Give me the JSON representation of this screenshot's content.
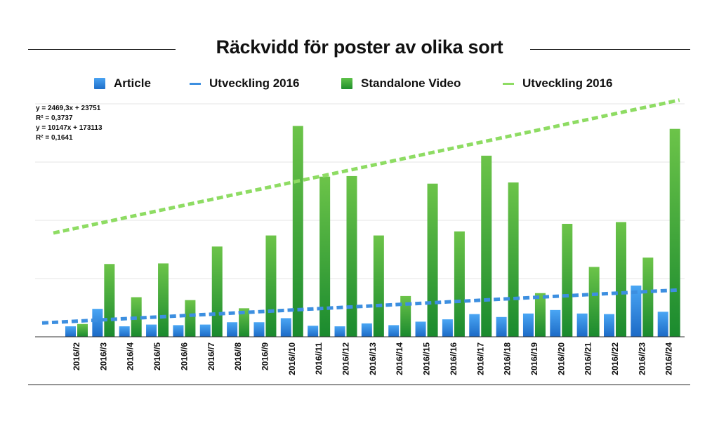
{
  "chart_data": {
    "type": "bar",
    "title": "Räckvidd för poster av olika sort",
    "categories": [
      "2016//2",
      "2016//3",
      "2016//4",
      "2016//5",
      "2016//6",
      "2016//7",
      "2016//8",
      "2016//9",
      "2016//10",
      "2016//11",
      "2016//12",
      "2016//13",
      "2016//14",
      "2016//15",
      "2016//16",
      "2016//17",
      "2016//18",
      "2016//19",
      "2016//20",
      "2016//21",
      "2016//22",
      "2016//23",
      "2016//24"
    ],
    "series": [
      {
        "name": "Article",
        "color": "#2e86e0",
        "values": [
          18000,
          48000,
          18000,
          21000,
          20000,
          21000,
          25000,
          25000,
          32000,
          19000,
          18000,
          23000,
          20000,
          26000,
          30000,
          39000,
          34000,
          40000,
          46000,
          40000,
          39000,
          88000,
          43000
        ]
      },
      {
        "name": "Standalone Video",
        "color": "#2ea83a",
        "values": [
          22000,
          125000,
          68000,
          126000,
          63000,
          155000,
          49000,
          174000,
          362000,
          275000,
          276000,
          174000,
          70000,
          263000,
          181000,
          311000,
          265000,
          75000,
          194000,
          120000,
          197000,
          136000,
          357000
        ]
      }
    ],
    "trendlines": [
      {
        "name": "Utveckling 2016",
        "of": "Article",
        "color": "#3d8fe0",
        "style": "dashed",
        "slope": 2469.3,
        "intercept": 23751,
        "r2": 0.3737,
        "equation": "y = 2469,3x + 23751",
        "r2_text": "R² = 0,3737"
      },
      {
        "name": "Utveckling 2016",
        "of": "Standalone Video",
        "color": "#8edc63",
        "style": "dashed",
        "slope": 10147,
        "intercept": 173113,
        "r2": 0.1641,
        "equation": "y = 10147x + 173113",
        "r2_text": "R² = 0,1641"
      }
    ],
    "xlabel": "",
    "ylabel": "",
    "ylim": [
      0,
      400000
    ],
    "y_tick_labels_shown": false,
    "grid": true,
    "legend_position": "top"
  },
  "legend": [
    {
      "label": "Article",
      "kind": "bar",
      "color": "#2e86e0"
    },
    {
      "label": "Utveckling 2016",
      "kind": "line",
      "color": "#3d8fe0"
    },
    {
      "label": "Standalone Video",
      "kind": "bar",
      "color": "#2ea83a"
    },
    {
      "label": "Utveckling 2016",
      "kind": "line",
      "color": "#8edc63"
    }
  ]
}
